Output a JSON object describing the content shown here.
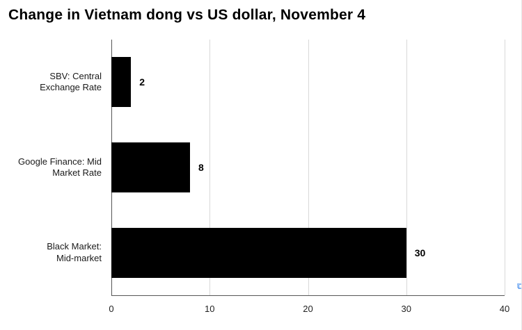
{
  "chart_data": {
    "type": "bar",
    "orientation": "horizontal",
    "title": "Change in Vietnam dong vs US dollar, November 4",
    "categories": [
      "SBV: Central Exchange Rate",
      "Google Finance: Mid Market Rate",
      "Black Market: Mid-market"
    ],
    "category_label_lines": [
      [
        "SBV: Central",
        "Exchange Rate"
      ],
      [
        "Google Finance: Mid",
        "Market Rate"
      ],
      [
        "Black Market:",
        "Mid-market"
      ]
    ],
    "values": [
      2,
      8,
      30
    ],
    "value_labels": [
      "2",
      "8",
      "30"
    ],
    "xlabel": "",
    "ylabel": "",
    "xlim": [
      0,
      40
    ],
    "xticks": [
      0,
      10,
      20,
      30,
      40
    ],
    "bar_color": "#000000",
    "grid": true,
    "legend_position": "none"
  },
  "edge_artifact_glyph": "⧉"
}
